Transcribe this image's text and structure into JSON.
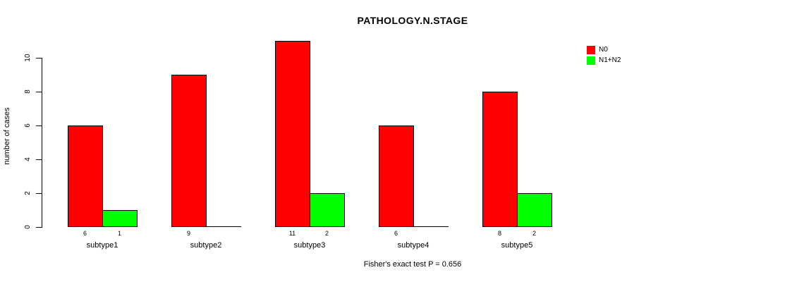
{
  "page": {
    "background": "#ffffff"
  },
  "chart_data": {
    "type": "bar",
    "title": "PATHOLOGY.N.STAGE",
    "xlabel": "",
    "ylabel": "number of cases",
    "categories": [
      "subtype1",
      "subtype2",
      "subtype3",
      "subtype4",
      "subtype5"
    ],
    "series": [
      {
        "name": "N0",
        "color": "#FF0000",
        "values": [
          6,
          9,
          11,
          6,
          8
        ]
      },
      {
        "name": "N1+N2",
        "color": "#00FF00",
        "values": [
          1,
          0,
          2,
          0,
          2
        ]
      }
    ],
    "ylim": [
      0,
      10
    ],
    "yticks": [
      0,
      2,
      4,
      6,
      8,
      10
    ],
    "grid": false,
    "legend_position": "top-right",
    "bar_border_color": "#000000",
    "axis_color": "#000000",
    "footer": "Fisher's exact test P = 0.656"
  }
}
